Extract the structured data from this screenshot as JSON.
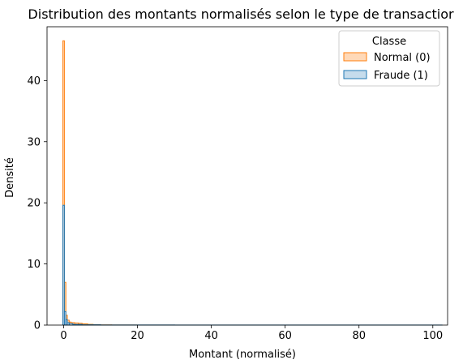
{
  "chart_data": {
    "type": "histogram",
    "title": "Distribution des montants normalisés selon le type de transactior",
    "xlabel": "Montant (normalisé)",
    "ylabel": "Densité",
    "xlim": [
      -4.5,
      104
    ],
    "ylim": [
      0,
      48.8
    ],
    "xticks": [
      0,
      20,
      40,
      60,
      80,
      100
    ],
    "yticks": [
      0,
      10,
      20,
      30,
      40
    ],
    "grid": false,
    "legend": {
      "title": "Classe",
      "placement": "top-right"
    },
    "series": [
      {
        "name": "Normal (0)",
        "color": "#ff7f0e",
        "fill": "#ffd9b8",
        "bins": [
          {
            "x0": -0.2,
            "x1": 0.2,
            "y": 46.5
          },
          {
            "x0": 0.2,
            "x1": 0.6,
            "y": 7.0
          },
          {
            "x0": 0.6,
            "x1": 1.0,
            "y": 1.6
          },
          {
            "x0": 1.0,
            "x1": 1.5,
            "y": 0.8
          },
          {
            "x0": 1.5,
            "x1": 2.0,
            "y": 0.5
          },
          {
            "x0": 2.0,
            "x1": 3.0,
            "y": 0.4
          },
          {
            "x0": 3.0,
            "x1": 4.0,
            "y": 0.35
          },
          {
            "x0": 4.0,
            "x1": 5.0,
            "y": 0.3
          },
          {
            "x0": 5.0,
            "x1": 6.5,
            "y": 0.2
          },
          {
            "x0": 6.5,
            "x1": 8.0,
            "y": 0.12
          },
          {
            "x0": 8.0,
            "x1": 10.0,
            "y": 0.06
          },
          {
            "x0": 10.0,
            "x1": 13.0,
            "y": 0.03
          },
          {
            "x0": 13.0,
            "x1": 20.0,
            "y": 0.01
          }
        ]
      },
      {
        "name": "Fraude (1)",
        "color": "#1f77b4",
        "fill": "#c6dcec",
        "bins": [
          {
            "x0": -0.2,
            "x1": 0.2,
            "y": 19.6
          },
          {
            "x0": 0.2,
            "x1": 0.6,
            "y": 2.2
          },
          {
            "x0": 0.6,
            "x1": 1.0,
            "y": 0.9
          },
          {
            "x0": 1.0,
            "x1": 1.5,
            "y": 0.4
          },
          {
            "x0": 1.5,
            "x1": 2.5,
            "y": 0.25
          },
          {
            "x0": 2.5,
            "x1": 5.0,
            "y": 0.12
          },
          {
            "x0": 5.0,
            "x1": 10.0,
            "y": 0.05
          },
          {
            "x0": 10.0,
            "x1": 30.0,
            "y": 0.02
          },
          {
            "x0": 30.0,
            "x1": 102.5,
            "y": 0.01
          }
        ]
      }
    ]
  }
}
